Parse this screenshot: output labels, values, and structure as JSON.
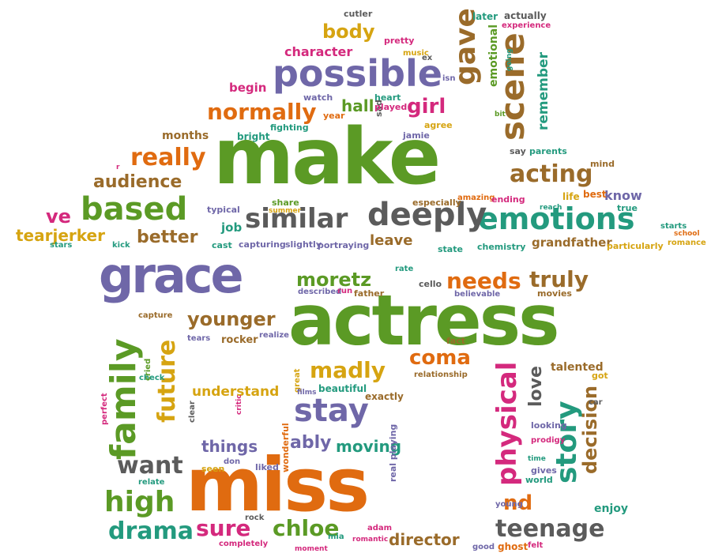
{
  "palette": {
    "green": "#5b9a25",
    "purple": "#6f67a8",
    "orange": "#e06b10",
    "brown": "#9a6b2a",
    "teal": "#239a7e",
    "gray": "#5b5b5b",
    "pink": "#d4297d",
    "gold": "#d6a411",
    "magenta": "#a8329a"
  },
  "words": [
    {
      "t": "make",
      "c": "green"
    },
    {
      "t": "actress",
      "c": "green"
    },
    {
      "t": "miss",
      "c": "orange"
    },
    {
      "t": "grace",
      "c": "purple"
    },
    {
      "t": "possible",
      "c": "purple"
    },
    {
      "t": "emotions",
      "c": "teal"
    },
    {
      "t": "similar",
      "c": "gray"
    },
    {
      "t": "deeply",
      "c": "gray"
    },
    {
      "t": "based",
      "c": "green"
    },
    {
      "t": "scene",
      "c": "brown"
    },
    {
      "t": "gave",
      "c": "brown"
    },
    {
      "t": "family",
      "c": "green"
    },
    {
      "t": "future",
      "c": "gold"
    },
    {
      "t": "stay",
      "c": "purple"
    },
    {
      "t": "physical",
      "c": "pink"
    },
    {
      "t": "story",
      "c": "teal"
    },
    {
      "t": "acting",
      "c": "brown"
    },
    {
      "t": "normally",
      "c": "orange"
    },
    {
      "t": "really",
      "c": "orange"
    },
    {
      "t": "audience",
      "c": "brown"
    },
    {
      "t": "better",
      "c": "brown"
    },
    {
      "t": "ve",
      "c": "pink"
    },
    {
      "t": "tearjerker",
      "c": "gold"
    },
    {
      "t": "body",
      "c": "gold"
    },
    {
      "t": "character",
      "c": "pink"
    },
    {
      "t": "girl",
      "c": "pink"
    },
    {
      "t": "remember",
      "c": "teal"
    },
    {
      "t": "emotional",
      "c": "green"
    },
    {
      "t": "hall",
      "c": "green"
    },
    {
      "t": "begin",
      "c": "pink"
    },
    {
      "t": "months",
      "c": "brown"
    },
    {
      "t": "moretz",
      "c": "green"
    },
    {
      "t": "needs",
      "c": "orange"
    },
    {
      "t": "truly",
      "c": "brown"
    },
    {
      "t": "younger",
      "c": "brown"
    },
    {
      "t": "madly",
      "c": "gold"
    },
    {
      "t": "coma",
      "c": "orange"
    },
    {
      "t": "understand",
      "c": "gold"
    },
    {
      "t": "want",
      "c": "gray"
    },
    {
      "t": "high",
      "c": "green"
    },
    {
      "t": "drama",
      "c": "teal"
    },
    {
      "t": "sure",
      "c": "pink"
    },
    {
      "t": "chloe",
      "c": "green"
    },
    {
      "t": "director",
      "c": "brown"
    },
    {
      "t": "teenage",
      "c": "gray"
    },
    {
      "t": "nd",
      "c": "orange"
    },
    {
      "t": "decision",
      "c": "brown"
    },
    {
      "t": "love",
      "c": "gray"
    },
    {
      "t": "things",
      "c": "purple"
    },
    {
      "t": "ably",
      "c": "purple"
    },
    {
      "t": "moving",
      "c": "teal"
    },
    {
      "t": "grandfather",
      "c": "brown"
    },
    {
      "t": "leave",
      "c": "brown"
    },
    {
      "t": "job",
      "c": "teal"
    },
    {
      "t": "capturing",
      "c": "purple"
    },
    {
      "t": "slightly",
      "c": "purple"
    },
    {
      "t": "portraying",
      "c": "purple"
    },
    {
      "t": "know",
      "c": "purple"
    },
    {
      "t": "life",
      "c": "gold"
    },
    {
      "t": "best",
      "c": "orange"
    },
    {
      "t": "true",
      "c": "teal"
    },
    {
      "t": "stars",
      "c": "teal"
    },
    {
      "t": "kick",
      "c": "teal"
    },
    {
      "t": "cast",
      "c": "teal"
    },
    {
      "t": "starts",
      "c": "teal"
    },
    {
      "t": "school",
      "c": "orange"
    },
    {
      "t": "romance",
      "c": "gold"
    },
    {
      "t": "particularly",
      "c": "gold"
    },
    {
      "t": "chemistry",
      "c": "teal"
    },
    {
      "t": "state",
      "c": "teal"
    },
    {
      "t": "typical",
      "c": "purple"
    },
    {
      "t": "share",
      "c": "green"
    },
    {
      "t": "summer",
      "c": "gold"
    },
    {
      "t": "especially",
      "c": "brown"
    },
    {
      "t": "amazing",
      "c": "orange"
    },
    {
      "t": "ending",
      "c": "pink"
    },
    {
      "t": "reach",
      "c": "teal"
    },
    {
      "t": "mind",
      "c": "brown"
    },
    {
      "t": "say",
      "c": "gray"
    },
    {
      "t": "parents",
      "c": "teal"
    },
    {
      "t": "agree",
      "c": "gold"
    },
    {
      "t": "jamie",
      "c": "purple"
    },
    {
      "t": "sad",
      "c": "gray"
    },
    {
      "t": "fighting",
      "c": "teal"
    },
    {
      "t": "bright",
      "c": "teal"
    },
    {
      "t": "year",
      "c": "orange"
    },
    {
      "t": "watch",
      "c": "purple"
    },
    {
      "t": "heart",
      "c": "teal"
    },
    {
      "t": "played",
      "c": "pink"
    },
    {
      "t": "isn",
      "c": "purple"
    },
    {
      "t": "pretty",
      "c": "pink"
    },
    {
      "t": "music",
      "c": "gold"
    },
    {
      "t": "ex",
      "c": "gray"
    },
    {
      "t": "cutler",
      "c": "gray"
    },
    {
      "t": "later",
      "c": "teal"
    },
    {
      "t": "actually",
      "c": "gray"
    },
    {
      "t": "experience",
      "c": "pink"
    },
    {
      "t": "going",
      "c": "teal"
    },
    {
      "t": "bit",
      "c": "green"
    },
    {
      "t": "rate",
      "c": "teal"
    },
    {
      "t": "cello",
      "c": "gray"
    },
    {
      "t": "described",
      "c": "purple"
    },
    {
      "t": "run",
      "c": "pink"
    },
    {
      "t": "father",
      "c": "brown"
    },
    {
      "t": "believable",
      "c": "purple"
    },
    {
      "t": "movies",
      "c": "brown"
    },
    {
      "t": "capture",
      "c": "brown"
    },
    {
      "t": "tears",
      "c": "purple"
    },
    {
      "t": "rocker",
      "c": "brown"
    },
    {
      "t": "realize",
      "c": "purple"
    },
    {
      "t": "fact",
      "c": "brown"
    },
    {
      "t": "relationship",
      "c": "brown"
    },
    {
      "t": "talented",
      "c": "brown"
    },
    {
      "t": "got",
      "c": "gold"
    },
    {
      "t": "check",
      "c": "teal"
    },
    {
      "t": "cried",
      "c": "green"
    },
    {
      "t": "perfect",
      "c": "pink"
    },
    {
      "t": "critic",
      "c": "pink"
    },
    {
      "t": "clear",
      "c": "gray"
    },
    {
      "t": "great",
      "c": "gold"
    },
    {
      "t": "films",
      "c": "purple"
    },
    {
      "t": "beautiful",
      "c": "teal"
    },
    {
      "t": "exactly",
      "c": "brown"
    },
    {
      "t": "wonderful",
      "c": "orange"
    },
    {
      "t": "real playing",
      "c": "purple"
    },
    {
      "t": "looking",
      "c": "purple"
    },
    {
      "t": "prodigy",
      "c": "pink"
    },
    {
      "t": "car",
      "c": "gray"
    },
    {
      "t": "time",
      "c": "teal"
    },
    {
      "t": "gives",
      "c": "purple"
    },
    {
      "t": "world",
      "c": "teal"
    },
    {
      "t": "young",
      "c": "purple"
    },
    {
      "t": "enjoy",
      "c": "teal"
    },
    {
      "t": "don",
      "c": "purple"
    },
    {
      "t": "seen",
      "c": "gold"
    },
    {
      "t": "liked",
      "c": "purple"
    },
    {
      "t": "relate",
      "c": "teal"
    },
    {
      "t": "rock",
      "c": "gray"
    },
    {
      "t": "adam",
      "c": "pink"
    },
    {
      "t": "mia",
      "c": "teal"
    },
    {
      "t": "romantic",
      "c": "pink"
    },
    {
      "t": "completely",
      "c": "pink"
    },
    {
      "t": "moment",
      "c": "pink"
    },
    {
      "t": "good",
      "c": "purple"
    },
    {
      "t": "ghost",
      "c": "orange"
    },
    {
      "t": "felt",
      "c": "pink"
    },
    {
      "t": "r",
      "c": "pink"
    }
  ]
}
